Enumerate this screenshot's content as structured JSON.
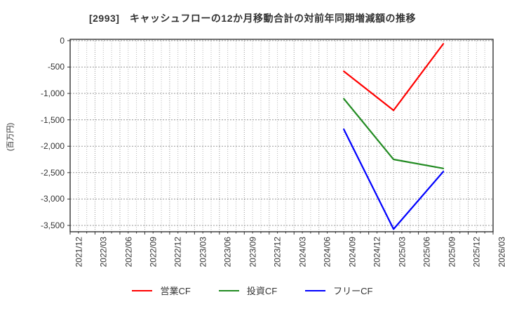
{
  "title": "[2993]　キャッシュフローの12か月移動合計の対前年同期増減額の推移",
  "y_axis_unit": "(百万円)",
  "colors": {
    "axis": "#333333",
    "grid_major": "#9a9a9a",
    "grid_minor": "#b8b8b8",
    "title_text": "#333333",
    "tick_text": "#333333"
  },
  "chart_data": {
    "type": "line",
    "title": "[2993]　キャッシュフローの12か月移動合計の対前年同期増減額の推移",
    "xlabel": "",
    "ylabel": "(百万円)",
    "grid": true,
    "legend_position": "bottom-center",
    "ylim": [
      -3620,
      25
    ],
    "yticks": [
      0,
      -500,
      -1000,
      -1500,
      -2000,
      -2500,
      -3000,
      -3500
    ],
    "categories": [
      "2021/12",
      "2022/03",
      "2022/06",
      "2022/09",
      "2022/12",
      "2023/03",
      "2023/06",
      "2023/09",
      "2023/12",
      "2024/03",
      "2024/06",
      "2024/09",
      "2024/12",
      "2025/03",
      "2025/06",
      "2025/09",
      "2025/12",
      "2026/03"
    ],
    "series": [
      {
        "name": "営業CF",
        "color": "#ff0000",
        "points": [
          {
            "x": "2024/09",
            "y": -580
          },
          {
            "x": "2025/03",
            "y": -1320
          },
          {
            "x": "2025/09",
            "y": -60
          }
        ]
      },
      {
        "name": "投資CF",
        "color": "#228b22",
        "points": [
          {
            "x": "2024/09",
            "y": -1100
          },
          {
            "x": "2025/03",
            "y": -2250
          },
          {
            "x": "2025/09",
            "y": -2420
          }
        ]
      },
      {
        "name": "フリーCF",
        "color": "#0000ff",
        "points": [
          {
            "x": "2024/09",
            "y": -1680
          },
          {
            "x": "2025/03",
            "y": -3570
          },
          {
            "x": "2025/09",
            "y": -2480
          }
        ]
      }
    ]
  }
}
